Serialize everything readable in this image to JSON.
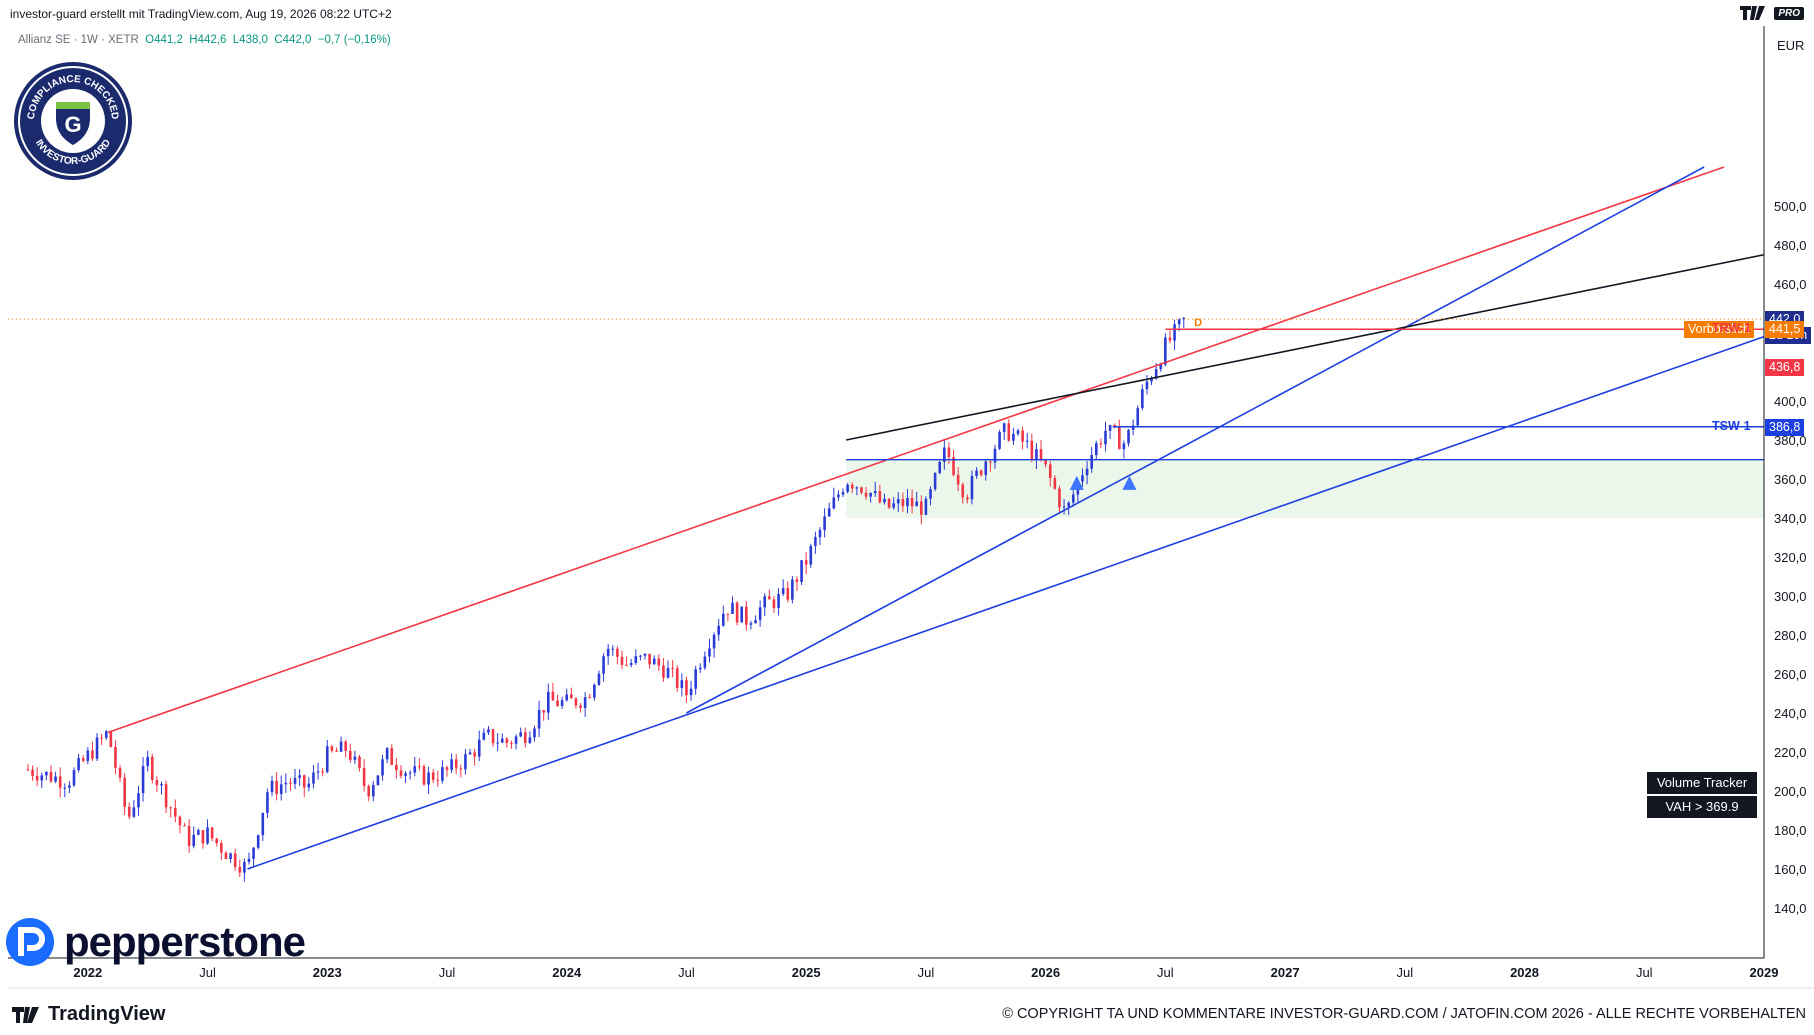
{
  "header": {
    "title": "investor-guard erstellt mit TradingView.com, Aug 19, 2026 08:22 UTC+2",
    "pro_label": "PRO"
  },
  "legend": {
    "symbol": "Allianz SE · 1W · XETR",
    "open": "O441,2",
    "high": "H442,6",
    "low": "L438,0",
    "close": "C442,0",
    "change": "−0,7 (−0,16%)"
  },
  "badge": {
    "top_text": "COMPLIANCE CHECKED",
    "bottom_text": "INVESTOR-GUARD",
    "letter": "G"
  },
  "price_axis": {
    "currency": "EUR",
    "ticks": [
      "500,0",
      "480,0",
      "460,0",
      "400,0",
      "380,0",
      "360,0",
      "340,0",
      "320,0",
      "300,0",
      "280,0",
      "260,0",
      "240,0",
      "220,0",
      "200,0",
      "180,0",
      "160,0",
      "140,0"
    ]
  },
  "time_axis": {
    "labels": [
      {
        "text": "2022",
        "year": true
      },
      {
        "text": "Jul",
        "year": false
      },
      {
        "text": "2023",
        "year": true
      },
      {
        "text": "Jul",
        "year": false
      },
      {
        "text": "2024",
        "year": true
      },
      {
        "text": "Jul",
        "year": false
      },
      {
        "text": "2025",
        "year": true
      },
      {
        "text": "Jul",
        "year": false
      },
      {
        "text": "2026",
        "year": true
      },
      {
        "text": "Jul",
        "year": false
      },
      {
        "text": "2027",
        "year": true
      },
      {
        "text": "Jul",
        "year": false
      },
      {
        "text": "2028",
        "year": true
      },
      {
        "text": "Jul",
        "year": false
      },
      {
        "text": "2029",
        "year": true
      }
    ]
  },
  "price_tags": {
    "last_price": "442,0",
    "countdown": "2d 10h",
    "premarket_label": "Vorbörslich",
    "premarket_price": "441,5",
    "red_tag": "436,8",
    "tsw_tag": "386,8"
  },
  "line_labels": {
    "trw": "TRW-1",
    "tsw": "TSW-1",
    "d_marker": "D"
  },
  "volume_tracker": {
    "title": "Volume Tracker",
    "value": "VAH > 369.9"
  },
  "branding": {
    "pepperstone": "pepperstone",
    "tradingview": "TradingView"
  },
  "footer": {
    "copyright": "© COPYRIGHT TA UND KOMMENTARE INVESTOR-GUARD.COM / JATOFIN.COM 2026 - ALLE RECHTE VORBEHALTEN"
  },
  "colors": {
    "up": "#2a3bd6",
    "down": "#f23645",
    "red_line": "#f23645",
    "blue_line": "#1e3fe0",
    "black_line": "#131722",
    "orange": "#f57c00",
    "zone": "#eaf7ea"
  },
  "chart_data": {
    "type": "candlestick",
    "title": "Allianz SE · 1W · XETR",
    "currency": "EUR",
    "ylim": [
      130,
      520
    ],
    "x_range": [
      "2021-09",
      "2029-01"
    ],
    "price_path": [
      [
        "2021-10",
        211
      ],
      [
        "2021-12",
        205
      ],
      [
        "2022-01",
        218
      ],
      [
        "2022-02",
        230
      ],
      [
        "2022-03",
        185
      ],
      [
        "2022-04",
        215
      ],
      [
        "2022-05",
        195
      ],
      [
        "2022-06",
        175
      ],
      [
        "2022-07",
        178
      ],
      [
        "2022-08",
        168
      ],
      [
        "2022-09",
        160
      ],
      [
        "2022-10",
        200
      ],
      [
        "2022-11",
        205
      ],
      [
        "2022-12",
        202
      ],
      [
        "2023-01",
        218
      ],
      [
        "2023-02",
        222
      ],
      [
        "2023-03",
        200
      ],
      [
        "2023-04",
        218
      ],
      [
        "2023-05",
        210
      ],
      [
        "2023-06",
        207
      ],
      [
        "2023-07",
        210
      ],
      [
        "2023-08",
        217
      ],
      [
        "2023-09",
        228
      ],
      [
        "2023-10",
        225
      ],
      [
        "2023-11",
        230
      ],
      [
        "2023-12",
        246
      ],
      [
        "2024-01",
        245
      ],
      [
        "2024-02",
        248
      ],
      [
        "2024-03",
        274
      ],
      [
        "2024-04",
        265
      ],
      [
        "2024-05",
        268
      ],
      [
        "2024-06",
        262
      ],
      [
        "2024-07",
        250
      ],
      [
        "2024-08",
        275
      ],
      [
        "2024-09",
        295
      ],
      [
        "2024-10",
        288
      ],
      [
        "2024-11",
        296
      ],
      [
        "2024-12",
        300
      ],
      [
        "2025-01",
        318
      ],
      [
        "2025-02",
        340
      ],
      [
        "2025-03",
        360
      ],
      [
        "2025-04",
        355
      ],
      [
        "2025-05",
        345
      ],
      [
        "2025-06",
        348
      ],
      [
        "2025-07",
        345
      ],
      [
        "2025-08",
        375
      ],
      [
        "2025-09",
        352
      ],
      [
        "2025-10",
        370
      ],
      [
        "2025-11",
        385
      ],
      [
        "2025-12",
        378
      ],
      [
        "2026-01",
        365
      ],
      [
        "2026-02",
        342
      ],
      [
        "2026-03",
        368
      ],
      [
        "2026-04",
        385
      ],
      [
        "2026-05",
        378
      ],
      [
        "2026-06",
        408
      ],
      [
        "2026-07",
        428
      ],
      [
        "2026-08",
        442
      ]
    ],
    "last": {
      "open": 441.2,
      "high": 442.6,
      "low": 438.0,
      "close": 442.0,
      "change": -0.7,
      "change_pct": -0.16
    },
    "levels": [
      {
        "name": "TRW-1",
        "value": 436.8
      },
      {
        "name": "TSW-1",
        "value": 386.8
      },
      {
        "name": "Vorbörslich",
        "value": 441.5
      },
      {
        "name": "VAH",
        "value": 369.9
      }
    ],
    "trendlines": [
      {
        "color": "red",
        "from": [
          "2022-02",
          230
        ],
        "to": [
          "2028-11",
          520
        ]
      },
      {
        "color": "blue",
        "from": [
          "2022-09",
          160
        ],
        "to": [
          "2029-01",
          433
        ]
      },
      {
        "color": "blue",
        "from": [
          "2024-07",
          240
        ],
        "to": [
          "2028-10",
          520
        ]
      },
      {
        "color": "black",
        "from": [
          "2025-03",
          380
        ],
        "to": [
          "2029-01",
          475
        ]
      }
    ],
    "zone": {
      "from": "2025-03",
      "ylim": [
        340,
        369.9
      ]
    },
    "grid": false,
    "legend_position": "top-left"
  }
}
